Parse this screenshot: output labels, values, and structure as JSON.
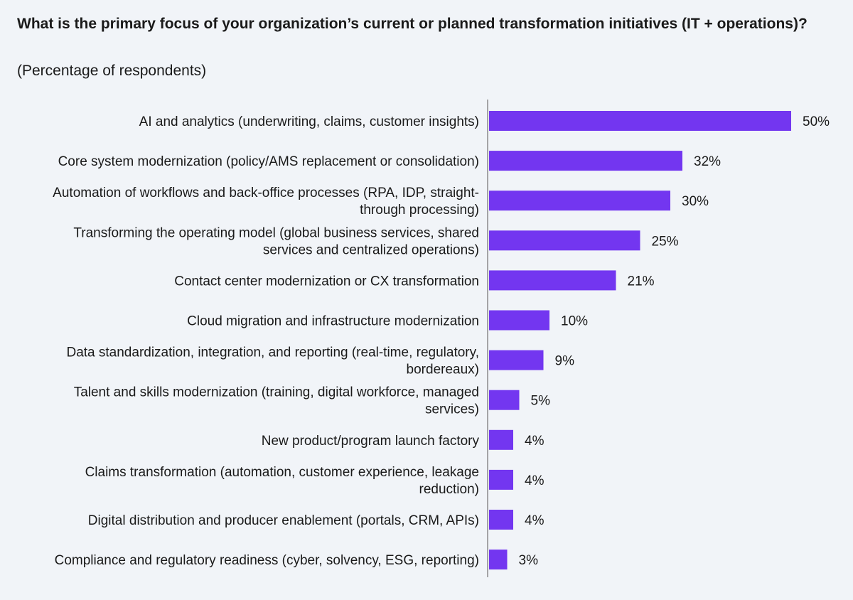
{
  "chart_data": {
    "type": "bar",
    "orientation": "horizontal",
    "title": "What is the primary focus of your organization’s current or planned transformation initiatives (IT + operations)?",
    "subtitle": "(Percentage of respondents)",
    "bar_color": "#7336f0",
    "value_suffix": "%",
    "categories": [
      [
        "AI and analytics (underwriting, claims, customer insights)"
      ],
      [
        "Core system modernization (policy/AMS replacement or consolidation)"
      ],
      [
        "Automation of workflows and back-office processes (RPA, IDP, straight-",
        "through processing)"
      ],
      [
        "Transforming the operating model (global business services, shared",
        "services and centralized operations)"
      ],
      [
        "Contact center modernization or CX transformation"
      ],
      [
        "Cloud migration and infrastructure modernization"
      ],
      [
        "Data standardization, integration, and reporting (real-time, regulatory,",
        "bordereaux)"
      ],
      [
        "Talent and skills modernization (training, digital workforce, managed",
        "services)"
      ],
      [
        "New product/program launch factory"
      ],
      [
        "Claims transformation (automation, customer experience, leakage",
        "reduction)"
      ],
      [
        "Digital distribution and producer enablement (portals, CRM, APIs)"
      ],
      [
        "Compliance and regulatory readiness (cyber, solvency, ESG, reporting)"
      ]
    ],
    "values": [
      50,
      32,
      30,
      25,
      21,
      10,
      9,
      5,
      4,
      4,
      4,
      3
    ]
  }
}
